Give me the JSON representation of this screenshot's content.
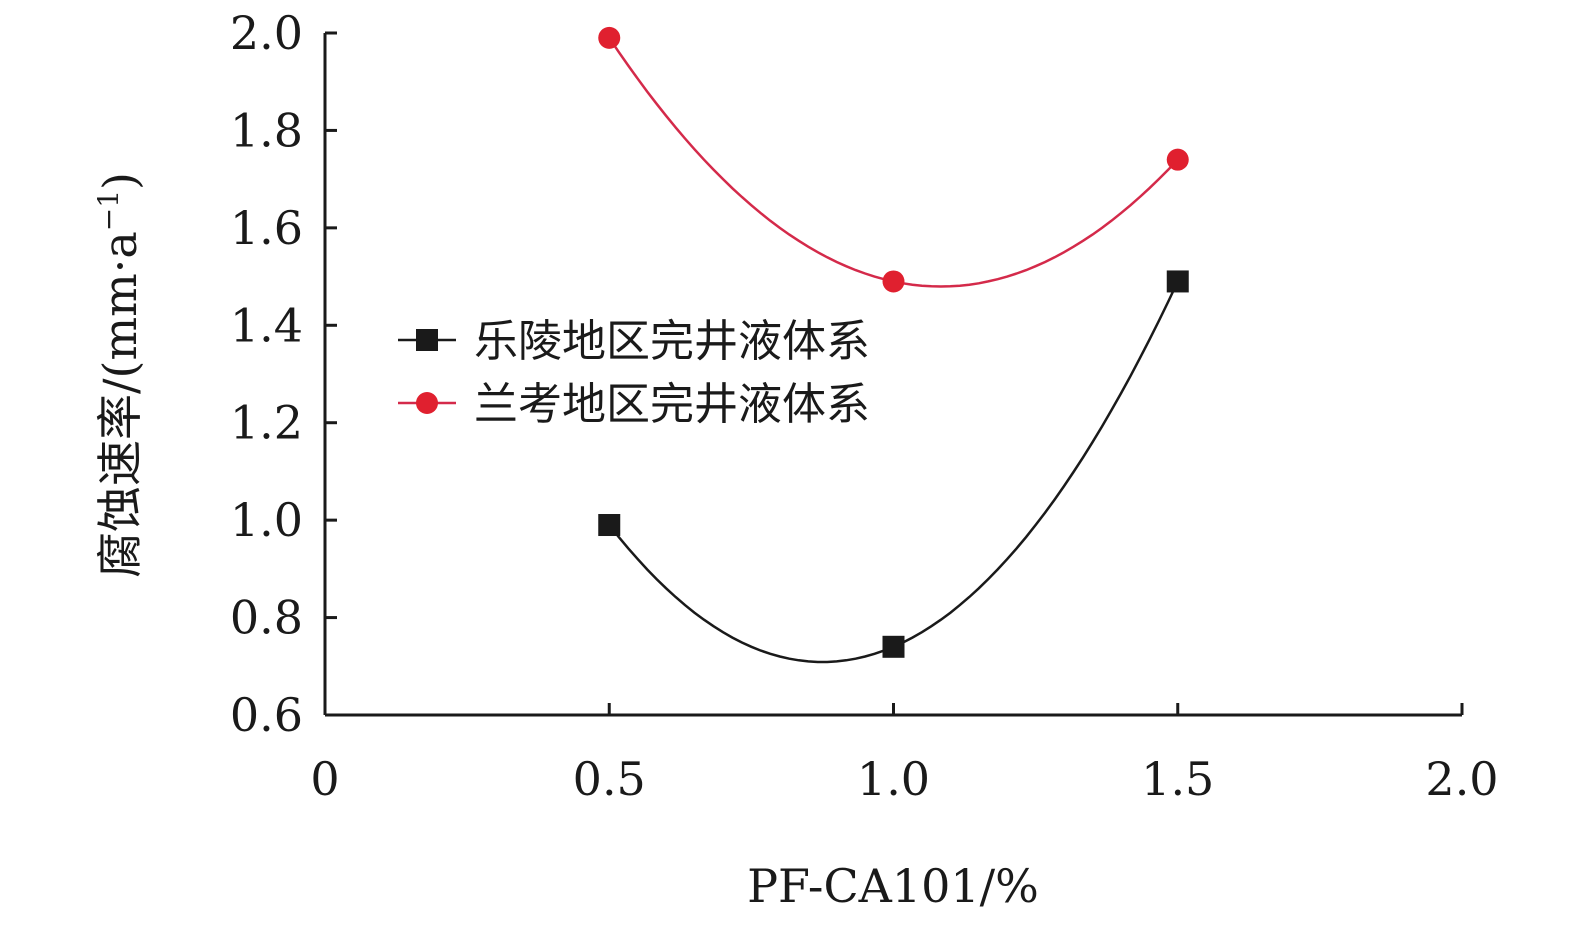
{
  "chart_data": {
    "type": "line",
    "xlabel": "PF-CA101/%",
    "ylabel": "腐蚀速率/(mm·a",
    "ylabel_sup": "−1",
    "ylabel_close": ")",
    "xlim": [
      0,
      2.0
    ],
    "ylim": [
      0.6,
      2.0
    ],
    "x_ticks": [
      "0",
      "0.5",
      "1.0",
      "1.5",
      "2.0"
    ],
    "y_ticks": [
      "0.6",
      "0.8",
      "1.0",
      "1.2",
      "1.4",
      "1.6",
      "1.8",
      "2.0"
    ],
    "smooth": true,
    "legend_position": "center-left",
    "series": [
      {
        "name": "乐陵地区完井液体系",
        "marker": "square",
        "color": "#1a1a1a",
        "x": [
          0.5,
          1.0,
          1.5
        ],
        "y": [
          0.99,
          0.74,
          1.49
        ]
      },
      {
        "name": "兰考地区完井液体系",
        "marker": "circle",
        "color": "#e0202f",
        "line_color": "#d42a4a",
        "x": [
          0.5,
          1.0,
          1.5
        ],
        "y": [
          1.99,
          1.49,
          1.74
        ]
      }
    ]
  }
}
